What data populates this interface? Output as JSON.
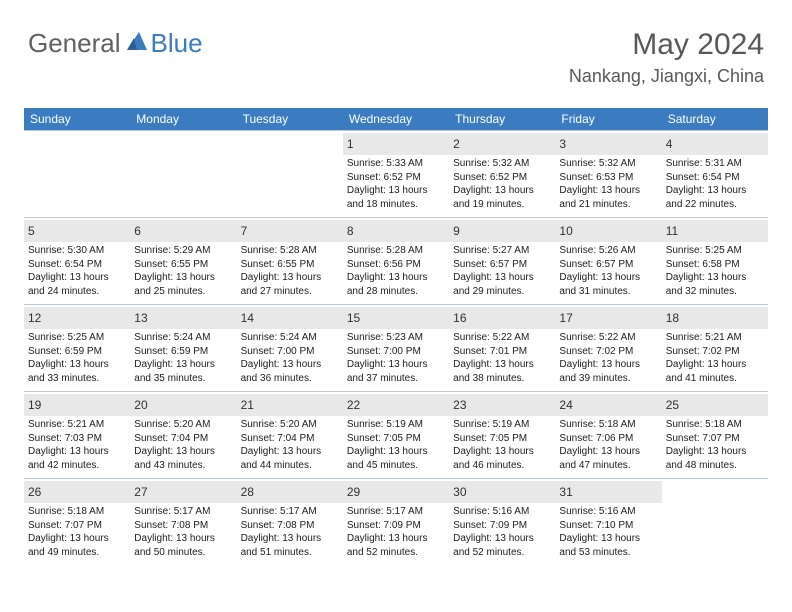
{
  "brand": {
    "part1": "General",
    "part2": "Blue"
  },
  "title": "May 2024",
  "location": "Nankang, Jiangxi, China",
  "colors": {
    "header_bg": "#3b7bbf",
    "header_fg": "#ffffff",
    "daynum_bg": "#e8e8e8",
    "border": "#b8c8d8",
    "text": "#202020",
    "title_color": "#585858"
  },
  "day_names": [
    "Sunday",
    "Monday",
    "Tuesday",
    "Wednesday",
    "Thursday",
    "Friday",
    "Saturday"
  ],
  "weeks": [
    [
      {
        "n": "",
        "sr": "",
        "ss": "",
        "dl": ""
      },
      {
        "n": "",
        "sr": "",
        "ss": "",
        "dl": ""
      },
      {
        "n": "",
        "sr": "",
        "ss": "",
        "dl": ""
      },
      {
        "n": "1",
        "sr": "5:33 AM",
        "ss": "6:52 PM",
        "dl": "13 hours and 18 minutes."
      },
      {
        "n": "2",
        "sr": "5:32 AM",
        "ss": "6:52 PM",
        "dl": "13 hours and 19 minutes."
      },
      {
        "n": "3",
        "sr": "5:32 AM",
        "ss": "6:53 PM",
        "dl": "13 hours and 21 minutes."
      },
      {
        "n": "4",
        "sr": "5:31 AM",
        "ss": "6:54 PM",
        "dl": "13 hours and 22 minutes."
      }
    ],
    [
      {
        "n": "5",
        "sr": "5:30 AM",
        "ss": "6:54 PM",
        "dl": "13 hours and 24 minutes."
      },
      {
        "n": "6",
        "sr": "5:29 AM",
        "ss": "6:55 PM",
        "dl": "13 hours and 25 minutes."
      },
      {
        "n": "7",
        "sr": "5:28 AM",
        "ss": "6:55 PM",
        "dl": "13 hours and 27 minutes."
      },
      {
        "n": "8",
        "sr": "5:28 AM",
        "ss": "6:56 PM",
        "dl": "13 hours and 28 minutes."
      },
      {
        "n": "9",
        "sr": "5:27 AM",
        "ss": "6:57 PM",
        "dl": "13 hours and 29 minutes."
      },
      {
        "n": "10",
        "sr": "5:26 AM",
        "ss": "6:57 PM",
        "dl": "13 hours and 31 minutes."
      },
      {
        "n": "11",
        "sr": "5:25 AM",
        "ss": "6:58 PM",
        "dl": "13 hours and 32 minutes."
      }
    ],
    [
      {
        "n": "12",
        "sr": "5:25 AM",
        "ss": "6:59 PM",
        "dl": "13 hours and 33 minutes."
      },
      {
        "n": "13",
        "sr": "5:24 AM",
        "ss": "6:59 PM",
        "dl": "13 hours and 35 minutes."
      },
      {
        "n": "14",
        "sr": "5:24 AM",
        "ss": "7:00 PM",
        "dl": "13 hours and 36 minutes."
      },
      {
        "n": "15",
        "sr": "5:23 AM",
        "ss": "7:00 PM",
        "dl": "13 hours and 37 minutes."
      },
      {
        "n": "16",
        "sr": "5:22 AM",
        "ss": "7:01 PM",
        "dl": "13 hours and 38 minutes."
      },
      {
        "n": "17",
        "sr": "5:22 AM",
        "ss": "7:02 PM",
        "dl": "13 hours and 39 minutes."
      },
      {
        "n": "18",
        "sr": "5:21 AM",
        "ss": "7:02 PM",
        "dl": "13 hours and 41 minutes."
      }
    ],
    [
      {
        "n": "19",
        "sr": "5:21 AM",
        "ss": "7:03 PM",
        "dl": "13 hours and 42 minutes."
      },
      {
        "n": "20",
        "sr": "5:20 AM",
        "ss": "7:04 PM",
        "dl": "13 hours and 43 minutes."
      },
      {
        "n": "21",
        "sr": "5:20 AM",
        "ss": "7:04 PM",
        "dl": "13 hours and 44 minutes."
      },
      {
        "n": "22",
        "sr": "5:19 AM",
        "ss": "7:05 PM",
        "dl": "13 hours and 45 minutes."
      },
      {
        "n": "23",
        "sr": "5:19 AM",
        "ss": "7:05 PM",
        "dl": "13 hours and 46 minutes."
      },
      {
        "n": "24",
        "sr": "5:18 AM",
        "ss": "7:06 PM",
        "dl": "13 hours and 47 minutes."
      },
      {
        "n": "25",
        "sr": "5:18 AM",
        "ss": "7:07 PM",
        "dl": "13 hours and 48 minutes."
      }
    ],
    [
      {
        "n": "26",
        "sr": "5:18 AM",
        "ss": "7:07 PM",
        "dl": "13 hours and 49 minutes."
      },
      {
        "n": "27",
        "sr": "5:17 AM",
        "ss": "7:08 PM",
        "dl": "13 hours and 50 minutes."
      },
      {
        "n": "28",
        "sr": "5:17 AM",
        "ss": "7:08 PM",
        "dl": "13 hours and 51 minutes."
      },
      {
        "n": "29",
        "sr": "5:17 AM",
        "ss": "7:09 PM",
        "dl": "13 hours and 52 minutes."
      },
      {
        "n": "30",
        "sr": "5:16 AM",
        "ss": "7:09 PM",
        "dl": "13 hours and 52 minutes."
      },
      {
        "n": "31",
        "sr": "5:16 AM",
        "ss": "7:10 PM",
        "dl": "13 hours and 53 minutes."
      },
      {
        "n": "",
        "sr": "",
        "ss": "",
        "dl": ""
      }
    ]
  ],
  "labels": {
    "sunrise": "Sunrise:",
    "sunset": "Sunset:",
    "daylight": "Daylight:"
  }
}
